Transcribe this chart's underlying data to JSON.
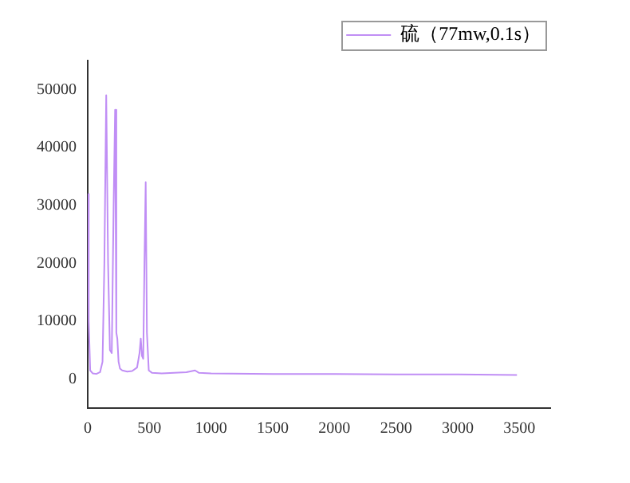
{
  "chart_data": {
    "type": "line",
    "legend": "top right",
    "grid": false,
    "marker": "none",
    "line_style": "solid",
    "xlim": [
      0,
      3750
    ],
    "ylim": [
      -5000,
      55000
    ],
    "xticks": [
      0,
      500,
      1000,
      1500,
      2000,
      2500,
      3000,
      3500
    ],
    "yticks": [
      0,
      10000,
      20000,
      30000,
      40000,
      50000
    ],
    "series": [
      {
        "name": "硫（77mw,0.1s）",
        "color": "#c08ef5",
        "x": [
          0,
          8,
          20,
          40,
          70,
          100,
          120,
          135,
          150,
          165,
          180,
          195,
          210,
          222,
          232,
          240,
          250,
          262,
          280,
          320,
          360,
          400,
          420,
          430,
          440,
          450,
          460,
          470,
          480,
          495,
          520,
          600,
          700,
          800,
          870,
          900,
          1000,
          1500,
          2000,
          2500,
          3000,
          3480
        ],
        "values": [
          32000,
          10000,
          1500,
          1000,
          900,
          1200,
          3000,
          20000,
          49000,
          20000,
          5000,
          4500,
          30000,
          46500,
          8000,
          7000,
          3000,
          1800,
          1500,
          1300,
          1400,
          2000,
          4500,
          7000,
          4000,
          3500,
          20000,
          34000,
          8000,
          1500,
          1100,
          1000,
          1100,
          1200,
          1500,
          1100,
          1000,
          900,
          900,
          800,
          800,
          700
        ]
      }
    ]
  }
}
